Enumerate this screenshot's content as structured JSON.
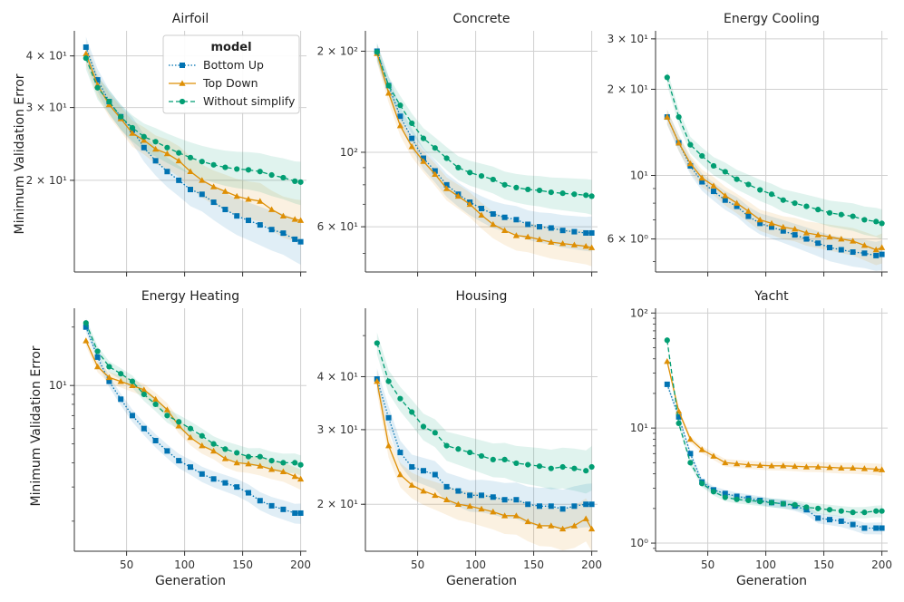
{
  "figure": {
    "ylabel": "Minimum Validation Error",
    "xlabel": "Generation"
  },
  "legend": {
    "title": "model",
    "entries": [
      "Bottom Up",
      "Top Down",
      "Without simplify"
    ]
  },
  "series_style": {
    "Bottom Up": {
      "color": "#0173b2",
      "marker": "square",
      "dash": "1.5 2"
    },
    "Top Down": {
      "color": "#de8f05",
      "marker": "triangle",
      "dash": ""
    },
    "Without simplify": {
      "color": "#029e73",
      "marker": "circle",
      "dash": "5 3"
    }
  },
  "chart_data": [
    {
      "type": "line",
      "title": "Airfoil",
      "yscale": "log",
      "ylim": [
        12,
        46
      ],
      "xlim": [
        5,
        205
      ],
      "x": [
        15,
        25,
        35,
        45,
        55,
        65,
        75,
        85,
        95,
        105,
        115,
        125,
        135,
        145,
        155,
        165,
        175,
        185,
        195,
        200
      ],
      "series": [
        {
          "name": "Bottom Up",
          "values": [
            42,
            35,
            31,
            28.5,
            26.5,
            24,
            22.3,
            21,
            20,
            19,
            18.5,
            17.7,
            17,
            16.4,
            16,
            15.6,
            15.2,
            14.9,
            14.4,
            14.2
          ]
        },
        {
          "name": "Top Down",
          "values": [
            40.5,
            34,
            30.5,
            28.2,
            26,
            25,
            23.8,
            23.2,
            22.3,
            21,
            20,
            19.3,
            18.8,
            18.3,
            18,
            17.8,
            17,
            16.4,
            16.1,
            16
          ]
        },
        {
          "name": "Without simplify",
          "values": [
            39.5,
            33.5,
            31,
            28.5,
            26.8,
            25.5,
            24.8,
            24,
            23.3,
            22.7,
            22.2,
            21.8,
            21.5,
            21.3,
            21.2,
            21,
            20.6,
            20.3,
            19.9,
            19.8
          ]
        }
      ],
      "yticks": [
        {
          "value": 20,
          "label": "2 × 10¹"
        },
        {
          "value": 30,
          "label": "3 × 10¹"
        },
        {
          "value": 40,
          "label": "4 × 10¹"
        }
      ],
      "xticks": [],
      "show_xlabel": false,
      "show_ylabel": true,
      "show_legend": true
    },
    {
      "type": "line",
      "title": "Concrete",
      "yscale": "log",
      "ylim": [
        44,
        230
      ],
      "xlim": [
        5,
        205
      ],
      "x": [
        15,
        25,
        35,
        45,
        55,
        65,
        75,
        85,
        95,
        105,
        115,
        125,
        135,
        145,
        155,
        165,
        175,
        185,
        195,
        200
      ],
      "series": [
        {
          "name": "Bottom Up",
          "values": [
            200,
            158,
            128,
            110,
            96,
            88,
            80,
            75,
            71,
            68,
            65.5,
            64,
            63,
            61,
            60,
            59.5,
            58.5,
            58,
            57.5,
            57.5
          ]
        },
        {
          "name": "Top Down",
          "values": [
            197,
            150,
            120,
            104,
            94,
            86,
            78,
            74,
            70,
            65,
            61,
            58.5,
            56.5,
            56,
            55,
            54,
            53.5,
            53,
            52.5,
            52
          ]
        },
        {
          "name": "Without simplify",
          "values": [
            199,
            158,
            138,
            122,
            110,
            103,
            96,
            90,
            87,
            85,
            83,
            80,
            78.5,
            77.5,
            77,
            76,
            75.5,
            75,
            74.5,
            74
          ]
        }
      ],
      "yticks": [
        {
          "value": 60,
          "label": "6 × 10¹"
        },
        {
          "value": 100,
          "label": "10²"
        },
        {
          "value": 200,
          "label": "2 × 10²"
        }
      ],
      "xticks": [],
      "show_xlabel": false,
      "show_ylabel": false,
      "show_legend": false
    },
    {
      "type": "line",
      "title": "Energy Cooling",
      "yscale": "log",
      "ylim": [
        4.6,
        32
      ],
      "xlim": [
        5,
        205
      ],
      "x": [
        15,
        25,
        35,
        45,
        55,
        65,
        75,
        85,
        95,
        105,
        115,
        125,
        135,
        145,
        155,
        165,
        175,
        185,
        195,
        200
      ],
      "series": [
        {
          "name": "Bottom Up",
          "values": [
            16,
            13,
            10.8,
            9.5,
            8.8,
            8.2,
            7.8,
            7.2,
            6.8,
            6.6,
            6.4,
            6.2,
            6,
            5.8,
            5.6,
            5.5,
            5.4,
            5.35,
            5.25,
            5.3
          ]
        },
        {
          "name": "Top Down",
          "values": [
            16,
            13,
            11,
            9.8,
            9.2,
            8.5,
            8,
            7.5,
            7,
            6.8,
            6.6,
            6.5,
            6.3,
            6.2,
            6.1,
            6,
            5.9,
            5.7,
            5.5,
            5.6
          ]
        },
        {
          "name": "Without simplify",
          "values": [
            22,
            16,
            12.8,
            11.7,
            10.8,
            10.3,
            9.7,
            9.3,
            8.9,
            8.6,
            8.2,
            8,
            7.8,
            7.6,
            7.4,
            7.3,
            7.2,
            7,
            6.9,
            6.8
          ]
        }
      ],
      "yticks": [
        {
          "value": 6,
          "label": "6 × 10⁰"
        },
        {
          "value": 10,
          "label": "10¹"
        },
        {
          "value": 20,
          "label": "2 × 10¹"
        },
        {
          "value": 30,
          "label": "3 × 10¹"
        }
      ],
      "xticks": [],
      "show_xlabel": false,
      "show_ylabel": false,
      "show_legend": false
    },
    {
      "type": "line",
      "title": "Energy Heating",
      "yscale": "log",
      "ylim": [
        1.4,
        25
      ],
      "xlim": [
        5,
        205
      ],
      "x": [
        15,
        25,
        35,
        45,
        55,
        65,
        75,
        85,
        95,
        105,
        115,
        125,
        135,
        145,
        155,
        165,
        175,
        185,
        195,
        200
      ],
      "series": [
        {
          "name": "Bottom Up",
          "values": [
            20,
            14,
            10.5,
            8.5,
            7,
            6,
            5.2,
            4.6,
            4.1,
            3.8,
            3.5,
            3.3,
            3.15,
            3,
            2.8,
            2.55,
            2.4,
            2.3,
            2.2,
            2.2
          ]
        },
        {
          "name": "Top Down",
          "values": [
            17,
            12.5,
            11,
            10.5,
            10,
            9.5,
            8.5,
            7.5,
            6.2,
            5.4,
            4.9,
            4.6,
            4.2,
            4,
            3.95,
            3.85,
            3.7,
            3.6,
            3.4,
            3.3
          ]
        },
        {
          "name": "Without simplify",
          "values": [
            21,
            15,
            12.5,
            11.5,
            10.5,
            9,
            8,
            7,
            6.5,
            6,
            5.5,
            5,
            4.7,
            4.5,
            4.3,
            4.3,
            4.1,
            4,
            4,
            3.9
          ]
        }
      ],
      "yticks": [
        {
          "value": 10,
          "label": "10¹"
        }
      ],
      "xticks": [
        50,
        100,
        150,
        200
      ],
      "show_xlabel": true,
      "show_ylabel": true,
      "show_legend": false
    },
    {
      "type": "line",
      "title": "Housing",
      "yscale": "log",
      "ylim": [
        15.5,
        58
      ],
      "xlim": [
        5,
        205
      ],
      "x": [
        15,
        25,
        35,
        45,
        55,
        65,
        75,
        85,
        95,
        105,
        115,
        125,
        135,
        145,
        155,
        165,
        175,
        185,
        195,
        200
      ],
      "series": [
        {
          "name": "Bottom Up",
          "values": [
            39.5,
            32,
            26.5,
            24.5,
            24,
            23.5,
            22,
            21.5,
            21,
            21,
            20.8,
            20.5,
            20.5,
            20,
            19.8,
            19.8,
            19.5,
            19.8,
            20,
            20
          ]
        },
        {
          "name": "Top Down",
          "values": [
            39,
            27.5,
            23.5,
            22.2,
            21.5,
            21,
            20.5,
            20,
            19.8,
            19.5,
            19.2,
            18.8,
            18.8,
            18.2,
            17.8,
            17.8,
            17.5,
            17.8,
            18.5,
            17.5
          ]
        },
        {
          "name": "Without simplify",
          "values": [
            48,
            39,
            35.5,
            33,
            30.5,
            29.5,
            27.5,
            27,
            26.5,
            26,
            25.5,
            25.5,
            25,
            24.8,
            24.6,
            24.3,
            24.5,
            24.3,
            24,
            24.5
          ]
        }
      ],
      "yticks": [
        {
          "value": 20,
          "label": "2 × 10¹"
        },
        {
          "value": 30,
          "label": "3 × 10¹"
        },
        {
          "value": 40,
          "label": "4 × 10¹"
        }
      ],
      "xticks": [
        50,
        100,
        150,
        200
      ],
      "show_xlabel": true,
      "show_ylabel": false,
      "show_legend": false
    },
    {
      "type": "line",
      "title": "Yacht",
      "yscale": "log",
      "ylim": [
        0.85,
        110
      ],
      "xlim": [
        5,
        205
      ],
      "x": [
        15,
        25,
        35,
        45,
        55,
        65,
        75,
        85,
        95,
        105,
        115,
        125,
        135,
        145,
        155,
        165,
        175,
        185,
        195,
        200
      ],
      "series": [
        {
          "name": "Bottom Up",
          "values": [
            24,
            12.5,
            6,
            3.4,
            2.9,
            2.7,
            2.55,
            2.45,
            2.35,
            2.25,
            2.2,
            2.1,
            1.95,
            1.65,
            1.6,
            1.55,
            1.45,
            1.35,
            1.35,
            1.35
          ]
        },
        {
          "name": "Top Down",
          "values": [
            38,
            14,
            8,
            6.5,
            5.7,
            5,
            4.9,
            4.8,
            4.75,
            4.7,
            4.7,
            4.65,
            4.6,
            4.6,
            4.55,
            4.5,
            4.5,
            4.45,
            4.4,
            4.35
          ]
        },
        {
          "name": "Without simplify",
          "values": [
            58,
            11,
            5,
            3.3,
            2.8,
            2.5,
            2.4,
            2.35,
            2.3,
            2.25,
            2.2,
            2.15,
            2.05,
            2,
            1.95,
            1.9,
            1.85,
            1.85,
            1.9,
            1.9
          ]
        }
      ],
      "yticks": [
        {
          "value": 1,
          "label": "10⁰"
        },
        {
          "value": 10,
          "label": "10¹"
        },
        {
          "value": 100,
          "label": "10²"
        }
      ],
      "xticks": [
        50,
        100,
        150,
        200
      ],
      "show_xlabel": true,
      "show_ylabel": false,
      "show_legend": false
    }
  ]
}
